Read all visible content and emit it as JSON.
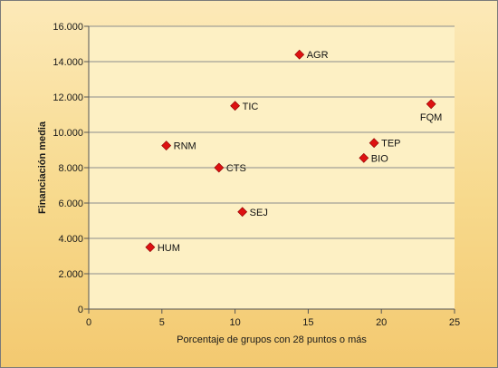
{
  "chart_data": {
    "type": "scatter",
    "title": "",
    "xlabel": "Porcentaje de grupos con 28 puntos o más",
    "ylabel": "Financiación media",
    "xlim": [
      0,
      25
    ],
    "ylim": [
      0,
      16000
    ],
    "x_ticks": [
      0,
      5,
      10,
      15,
      20,
      25
    ],
    "x_tick_labels": [
      "0",
      "5",
      "10",
      "15",
      "20",
      "25"
    ],
    "y_ticks": [
      0,
      2000,
      4000,
      6000,
      8000,
      10000,
      12000,
      14000,
      16000
    ],
    "y_tick_labels": [
      "0",
      "2.000",
      "4.000",
      "6.000",
      "8.000",
      "10.000",
      "12.000",
      "14.000",
      "16.000"
    ],
    "grid": "horizontal",
    "marker_color": "#dd1111",
    "plot_background": "#fdf0c4",
    "frame_background": "#f6d88a",
    "points": [
      {
        "label": "AGR",
        "x": 14.4,
        "y": 14400,
        "label_position": "right"
      },
      {
        "label": "TIC",
        "x": 10.0,
        "y": 11500,
        "label_position": "right"
      },
      {
        "label": "FQM",
        "x": 23.4,
        "y": 11600,
        "label_position": "below"
      },
      {
        "label": "RNM",
        "x": 5.3,
        "y": 9250,
        "label_position": "right"
      },
      {
        "label": "TEP",
        "x": 19.5,
        "y": 9400,
        "label_position": "right"
      },
      {
        "label": "BIO",
        "x": 18.8,
        "y": 8550,
        "label_position": "right"
      },
      {
        "label": "CTS",
        "x": 8.9,
        "y": 8000,
        "label_position": "right"
      },
      {
        "label": "SEJ",
        "x": 10.5,
        "y": 5500,
        "label_position": "right"
      },
      {
        "label": "HUM",
        "x": 4.2,
        "y": 3500,
        "label_position": "right"
      }
    ]
  }
}
